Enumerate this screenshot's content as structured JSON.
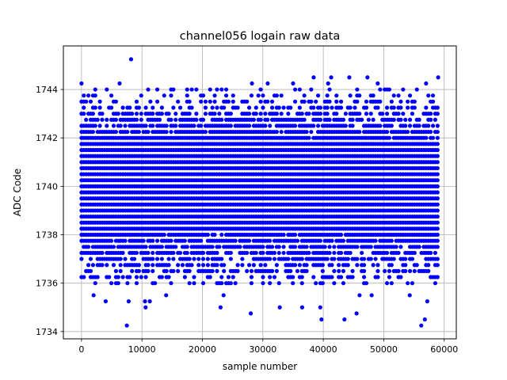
{
  "chart_data": {
    "type": "scatter",
    "title": "channel056 logain raw data",
    "xlabel": "sample number",
    "ylabel": "ADC Code",
    "xlim": [
      -3000,
      62000
    ],
    "ylim": [
      1733.7,
      1745.8
    ],
    "xticks": [
      0,
      10000,
      20000,
      30000,
      40000,
      50000,
      60000
    ],
    "xtick_labels": [
      "0",
      "10000",
      "20000",
      "30000",
      "40000",
      "50000",
      "60000"
    ],
    "yticks": [
      1734,
      1736,
      1738,
      1740,
      1742,
      1744
    ],
    "ytick_labels": [
      "1734",
      "1736",
      "1738",
      "1740",
      "1742",
      "1744"
    ],
    "grid": true,
    "marker_color": "#0000ff",
    "x_range": [
      0,
      59000
    ],
    "dense_levels": [
      1736,
      1736.25,
      1736.5,
      1736.75,
      1737,
      1737.25,
      1737.5,
      1737.75,
      1738,
      1738.25,
      1738.5,
      1738.75,
      1739,
      1739.25,
      1739.5,
      1739.75,
      1740,
      1740.25,
      1740.5,
      1740.75,
      1741,
      1741.25,
      1741.5,
      1741.75,
      1742,
      1742.25,
      1742.5,
      1742.75,
      1743,
      1743.25,
      1743.5,
      1743.75,
      1744
    ],
    "level_density": [
      0.3,
      0.36,
      0.45,
      0.55,
      0.65,
      0.74,
      0.82,
      0.9,
      0.96,
      1,
      1,
      1,
      1,
      1,
      1,
      1,
      1,
      1,
      1,
      1,
      1,
      1,
      1,
      1,
      0.96,
      0.9,
      0.8,
      0.68,
      0.55,
      0.44,
      0.34,
      0.26,
      0.15
    ],
    "outliers": [
      {
        "x": 0,
        "y": 1744.25
      },
      {
        "x": 6300,
        "y": 1744.25
      },
      {
        "x": 8200,
        "y": 1745.25
      },
      {
        "x": 28200,
        "y": 1744.25
      },
      {
        "x": 30800,
        "y": 1744.25
      },
      {
        "x": 35000,
        "y": 1744.25
      },
      {
        "x": 38400,
        "y": 1744.5
      },
      {
        "x": 40800,
        "y": 1744.25
      },
      {
        "x": 41300,
        "y": 1744.5
      },
      {
        "x": 44300,
        "y": 1744.5
      },
      {
        "x": 47300,
        "y": 1744.5
      },
      {
        "x": 49000,
        "y": 1744.25
      },
      {
        "x": 57000,
        "y": 1744.25
      },
      {
        "x": 59000,
        "y": 1744.5
      },
      {
        "x": 2000,
        "y": 1735.5
      },
      {
        "x": 4000,
        "y": 1735.25
      },
      {
        "x": 7500,
        "y": 1734.25
      },
      {
        "x": 7800,
        "y": 1735.25
      },
      {
        "x": 10500,
        "y": 1735.25
      },
      {
        "x": 10600,
        "y": 1735.0
      },
      {
        "x": 11300,
        "y": 1735.25
      },
      {
        "x": 14000,
        "y": 1735.5
      },
      {
        "x": 23000,
        "y": 1735.0
      },
      {
        "x": 23500,
        "y": 1735.5
      },
      {
        "x": 28000,
        "y": 1734.75
      },
      {
        "x": 32800,
        "y": 1735.0
      },
      {
        "x": 36500,
        "y": 1735.0
      },
      {
        "x": 39500,
        "y": 1735.0
      },
      {
        "x": 39700,
        "y": 1734.5
      },
      {
        "x": 43500,
        "y": 1734.5
      },
      {
        "x": 45500,
        "y": 1734.75
      },
      {
        "x": 46000,
        "y": 1735.5
      },
      {
        "x": 48000,
        "y": 1735.5
      },
      {
        "x": 54300,
        "y": 1735.5
      },
      {
        "x": 56200,
        "y": 1734.25
      },
      {
        "x": 56800,
        "y": 1734.5
      },
      {
        "x": 57200,
        "y": 1735.25
      }
    ]
  }
}
